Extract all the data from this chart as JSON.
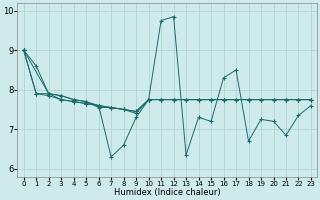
{
  "xlabel": "Humidex (Indice chaleur)",
  "xlim": [
    -0.5,
    23.5
  ],
  "ylim": [
    5.8,
    10.2
  ],
  "yticks": [
    6,
    7,
    8,
    9,
    10
  ],
  "xticks": [
    0,
    1,
    2,
    3,
    4,
    5,
    6,
    7,
    8,
    9,
    10,
    11,
    12,
    13,
    14,
    15,
    16,
    17,
    18,
    19,
    20,
    21,
    22,
    23
  ],
  "bg_color": "#ceeaea",
  "grid_color": "#afd4d4",
  "line_color": "#1a6b6b",
  "series": [
    {
      "x": [
        0,
        1,
        2,
        3,
        4,
        5,
        6,
        7,
        8,
        9,
        10,
        11,
        12,
        13,
        14,
        15,
        16,
        17,
        18,
        19,
        20,
        21,
        22,
        23
      ],
      "y": [
        9.0,
        8.6,
        7.9,
        7.85,
        7.75,
        7.7,
        7.6,
        6.3,
        6.6,
        7.3,
        7.75,
        9.75,
        9.85,
        6.35,
        7.3,
        7.2,
        8.3,
        8.5,
        6.7,
        7.25,
        7.2,
        6.85,
        7.35,
        7.6
      ]
    },
    {
      "x": [
        0,
        1,
        2,
        3,
        4,
        5,
        6,
        7,
        8,
        9,
        10,
        11,
        12,
        13,
        14,
        15,
        16,
        17,
        18,
        19,
        20,
        21,
        22,
        23
      ],
      "y": [
        9.0,
        7.9,
        7.9,
        7.75,
        7.7,
        7.65,
        7.6,
        7.55,
        7.5,
        7.45,
        7.75,
        7.75,
        7.75,
        7.75,
        7.75,
        7.75,
        7.75,
        7.75,
        7.75,
        7.75,
        7.75,
        7.75,
        7.75,
        7.75
      ]
    },
    {
      "x": [
        0,
        2,
        3,
        4,
        5,
        6,
        7,
        8,
        9,
        10,
        11,
        12,
        13,
        14,
        15,
        16,
        17,
        18,
        19,
        20,
        21,
        22,
        23
      ],
      "y": [
        9.0,
        7.9,
        7.85,
        7.75,
        7.7,
        7.55,
        7.55,
        7.5,
        7.45,
        7.75,
        7.75,
        7.75,
        7.75,
        7.75,
        7.75,
        7.75,
        7.75,
        7.75,
        7.75,
        7.75,
        7.75,
        7.75,
        7.75
      ]
    },
    {
      "x": [
        0,
        1,
        2,
        3,
        4,
        5,
        6,
        7,
        8,
        9,
        10,
        11,
        12,
        13,
        14,
        15,
        16,
        17,
        18,
        19,
        20,
        21,
        22,
        23
      ],
      "y": [
        9.0,
        7.9,
        7.85,
        7.75,
        7.7,
        7.65,
        7.6,
        7.55,
        7.5,
        7.4,
        7.75,
        7.75,
        7.75,
        7.75,
        7.75,
        7.75,
        7.75,
        7.75,
        7.75,
        7.75,
        7.75,
        7.75,
        7.75,
        7.75
      ]
    }
  ]
}
